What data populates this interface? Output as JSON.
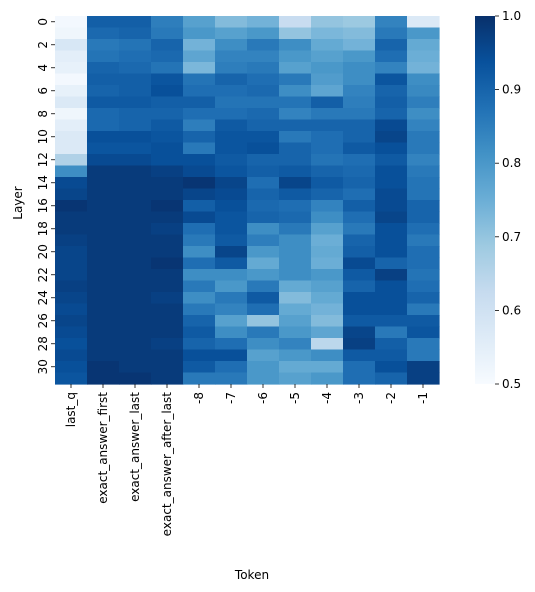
{
  "chart_data": {
    "type": "heatmap",
    "title": "",
    "xlabel": "Token",
    "ylabel": "Layer",
    "x_categories": [
      "last_q",
      "exact_answer_first",
      "exact_answer_last",
      "exact_answer_after_last",
      "-8",
      "-7",
      "-6",
      "-5",
      "-4",
      "-3",
      "-2",
      "-1"
    ],
    "y_tick_labels": [
      "0",
      "2",
      "4",
      "6",
      "8",
      "10",
      "12",
      "14",
      "16",
      "18",
      "20",
      "22",
      "24",
      "26",
      "28",
      "30"
    ],
    "n_rows": 32,
    "colorbar": {
      "min": 0.5,
      "max": 1.0,
      "ticks": [
        "0.5",
        "0.6",
        "0.7",
        "0.8",
        "0.9",
        "1.0"
      ]
    },
    "colormap": {
      "low": "#f7fbff",
      "high": "#08306b"
    },
    "values": [
      [
        0.51,
        0.91,
        0.91,
        0.85,
        0.78,
        0.72,
        0.74,
        0.62,
        0.7,
        0.69,
        0.84,
        0.57
      ],
      [
        0.52,
        0.89,
        0.9,
        0.86,
        0.8,
        0.78,
        0.8,
        0.7,
        0.73,
        0.72,
        0.86,
        0.8
      ],
      [
        0.58,
        0.86,
        0.87,
        0.9,
        0.74,
        0.82,
        0.86,
        0.82,
        0.76,
        0.74,
        0.9,
        0.76
      ],
      [
        0.55,
        0.87,
        0.88,
        0.89,
        0.77,
        0.84,
        0.84,
        0.8,
        0.78,
        0.8,
        0.88,
        0.75
      ],
      [
        0.54,
        0.9,
        0.89,
        0.87,
        0.73,
        0.85,
        0.86,
        0.78,
        0.8,
        0.82,
        0.84,
        0.74
      ],
      [
        0.51,
        0.91,
        0.91,
        0.93,
        0.87,
        0.9,
        0.88,
        0.86,
        0.79,
        0.82,
        0.93,
        0.82
      ],
      [
        0.54,
        0.9,
        0.91,
        0.94,
        0.88,
        0.88,
        0.89,
        0.82,
        0.77,
        0.84,
        0.9,
        0.83
      ],
      [
        0.57,
        0.92,
        0.92,
        0.91,
        0.91,
        0.87,
        0.87,
        0.87,
        0.91,
        0.85,
        0.91,
        0.85
      ],
      [
        0.52,
        0.89,
        0.9,
        0.9,
        0.88,
        0.88,
        0.89,
        0.84,
        0.86,
        0.86,
        0.9,
        0.82
      ],
      [
        0.55,
        0.89,
        0.9,
        0.92,
        0.85,
        0.92,
        0.9,
        0.9,
        0.9,
        0.9,
        0.95,
        0.84
      ],
      [
        0.57,
        0.94,
        0.94,
        0.93,
        0.9,
        0.93,
        0.93,
        0.86,
        0.88,
        0.9,
        0.96,
        0.86
      ],
      [
        0.57,
        0.93,
        0.93,
        0.94,
        0.86,
        0.93,
        0.94,
        0.9,
        0.88,
        0.92,
        0.94,
        0.86
      ],
      [
        0.66,
        0.95,
        0.95,
        0.94,
        0.94,
        0.92,
        0.9,
        0.9,
        0.87,
        0.88,
        0.92,
        0.84
      ],
      [
        0.82,
        0.98,
        0.98,
        0.97,
        0.95,
        0.93,
        0.91,
        0.92,
        0.9,
        0.89,
        0.94,
        0.86
      ],
      [
        0.95,
        0.98,
        0.98,
        0.98,
        0.99,
        0.96,
        0.88,
        0.96,
        0.92,
        0.9,
        0.94,
        0.87
      ],
      [
        0.96,
        0.98,
        0.98,
        0.98,
        0.96,
        0.95,
        0.9,
        0.92,
        0.9,
        0.88,
        0.95,
        0.87
      ],
      [
        0.99,
        0.98,
        0.98,
        0.99,
        0.91,
        0.94,
        0.89,
        0.88,
        0.84,
        0.91,
        0.95,
        0.9
      ],
      [
        0.98,
        0.98,
        0.98,
        0.98,
        0.95,
        0.93,
        0.9,
        0.89,
        0.82,
        0.88,
        0.96,
        0.9
      ],
      [
        0.98,
        0.98,
        0.98,
        0.97,
        0.88,
        0.93,
        0.82,
        0.86,
        0.78,
        0.86,
        0.94,
        0.88
      ],
      [
        0.97,
        0.98,
        0.98,
        0.98,
        0.86,
        0.92,
        0.85,
        0.82,
        0.75,
        0.9,
        0.94,
        0.86
      ],
      [
        0.96,
        0.98,
        0.98,
        0.98,
        0.82,
        0.96,
        0.8,
        0.82,
        0.76,
        0.91,
        0.94,
        0.88
      ],
      [
        0.96,
        0.98,
        0.98,
        0.99,
        0.88,
        0.92,
        0.76,
        0.82,
        0.75,
        0.95,
        0.9,
        0.88
      ],
      [
        0.96,
        0.98,
        0.98,
        0.98,
        0.82,
        0.82,
        0.8,
        0.82,
        0.8,
        0.92,
        0.97,
        0.87
      ],
      [
        0.97,
        0.98,
        0.98,
        0.98,
        0.86,
        0.8,
        0.86,
        0.76,
        0.78,
        0.9,
        0.94,
        0.88
      ],
      [
        0.96,
        0.98,
        0.98,
        0.97,
        0.82,
        0.86,
        0.92,
        0.72,
        0.76,
        0.94,
        0.94,
        0.9
      ],
      [
        0.95,
        0.98,
        0.98,
        0.98,
        0.86,
        0.84,
        0.88,
        0.76,
        0.74,
        0.94,
        0.94,
        0.86
      ],
      [
        0.96,
        0.98,
        0.98,
        0.98,
        0.9,
        0.78,
        0.7,
        0.78,
        0.72,
        0.92,
        0.92,
        0.92
      ],
      [
        0.95,
        0.98,
        0.98,
        0.98,
        0.92,
        0.82,
        0.86,
        0.8,
        0.77,
        0.96,
        0.86,
        0.93
      ],
      [
        0.94,
        0.98,
        0.98,
        0.97,
        0.9,
        0.88,
        0.82,
        0.84,
        0.64,
        0.97,
        0.91,
        0.86
      ],
      [
        0.95,
        0.98,
        0.98,
        0.98,
        0.94,
        0.94,
        0.78,
        0.8,
        0.82,
        0.92,
        0.92,
        0.86
      ],
      [
        0.94,
        0.99,
        0.98,
        0.98,
        0.92,
        0.88,
        0.8,
        0.76,
        0.76,
        0.88,
        0.94,
        0.97
      ],
      [
        0.93,
        0.99,
        0.99,
        0.98,
        0.86,
        0.86,
        0.8,
        0.78,
        0.8,
        0.88,
        0.9,
        0.97
      ]
    ]
  }
}
